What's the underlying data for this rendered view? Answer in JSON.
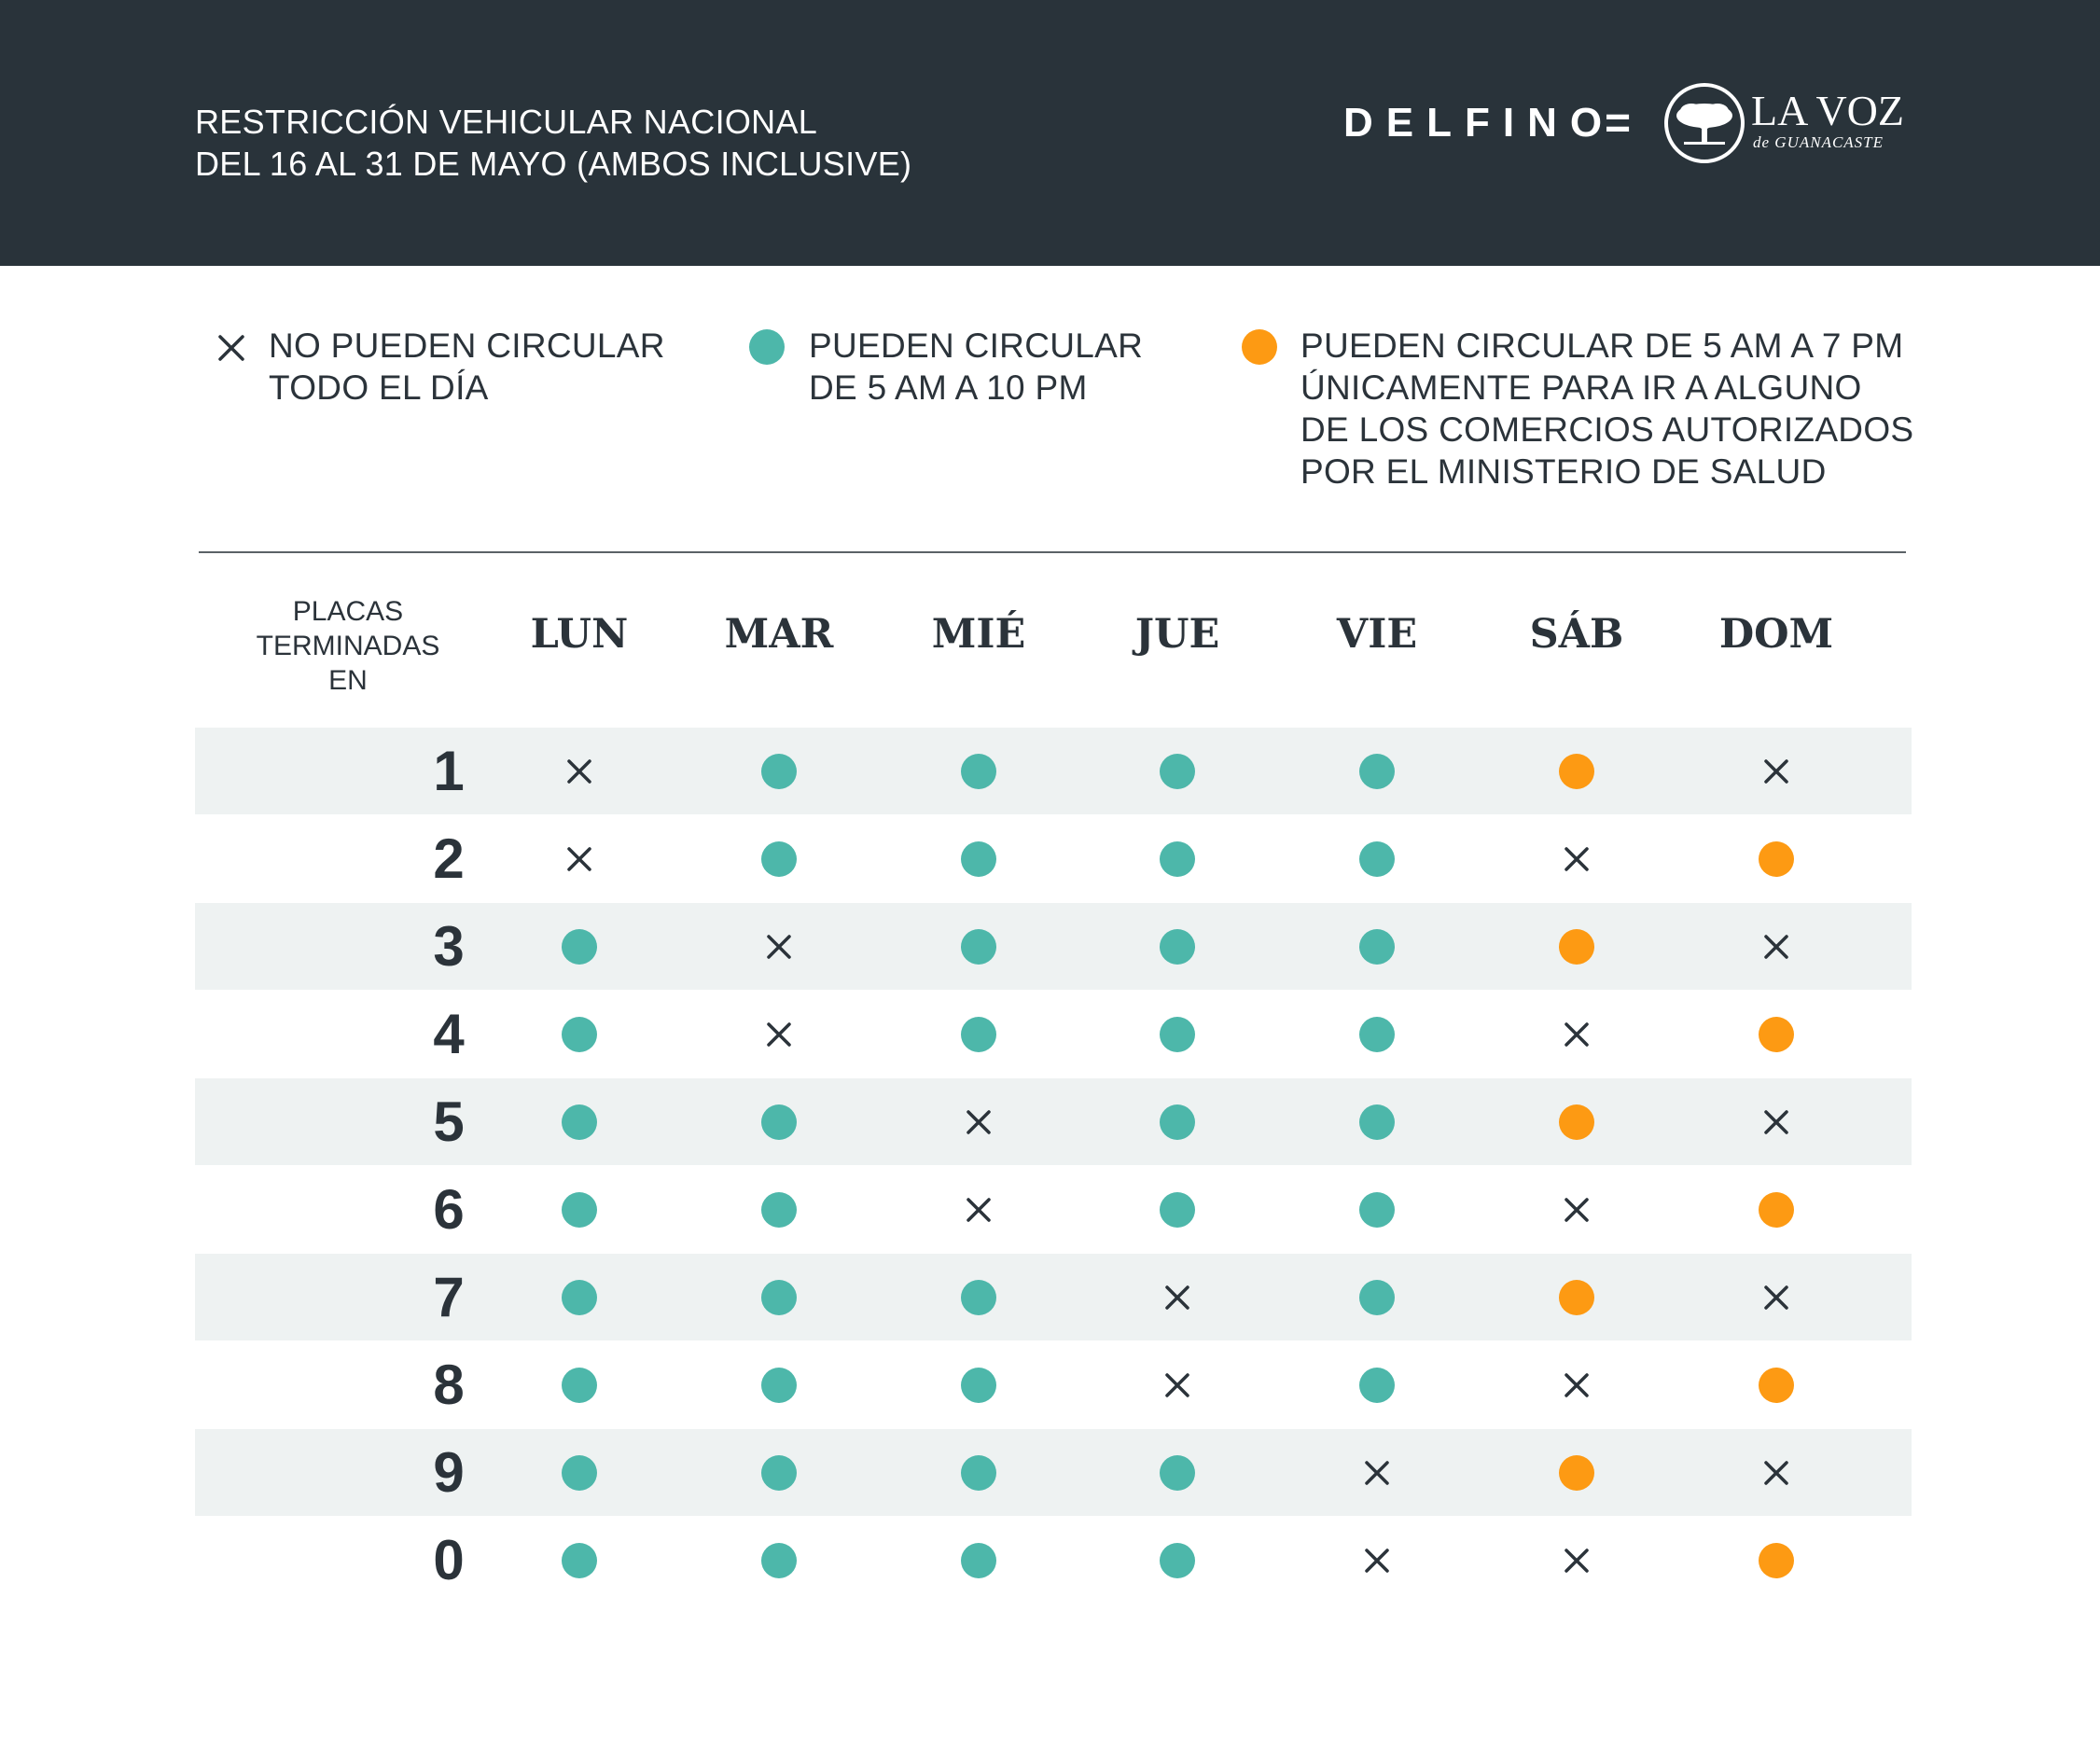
{
  "header": {
    "title_line1": "RESTRICCIÓN VEHICULAR NACIONAL",
    "title_line2": "DEL 16 AL 31 DE MAYO (AMBOS INCLUSIVE)",
    "brand": "DELFINO",
    "equals": "=",
    "logo_main": "LA VOZ",
    "logo_sub": "de GUANACASTE"
  },
  "legend": {
    "no_circulate": {
      "line1": "NO PUEDEN CIRCULAR",
      "line2": "TODO EL DÍA",
      "color": "#2b333a"
    },
    "full_day": {
      "line1": "PUEDEN CIRCULAR",
      "line2": "DE 5 AM A 10 PM",
      "color": "#4db7aa"
    },
    "limited": {
      "line1": "PUEDEN CIRCULAR DE 5 AM A 7 PM",
      "line2": "ÚNICAMENTE PARA IR A ALGUNO",
      "line3": "DE LOS COMERCIOS AUTORIZADOS",
      "line4": "POR EL MINISTERIO DE SALUD",
      "color": "#fd9a13"
    }
  },
  "table": {
    "plates_header": {
      "line1": "PLACAS",
      "line2": "TERMINADAS",
      "line3": "EN"
    },
    "days": [
      "LUN",
      "MAR",
      "MIÉ",
      "JUE",
      "VIE",
      "SÁB",
      "DOM"
    ],
    "rows": [
      {
        "plate": "1",
        "cells": [
          "x",
          "teal",
          "teal",
          "teal",
          "teal",
          "orange",
          "x"
        ]
      },
      {
        "plate": "2",
        "cells": [
          "x",
          "teal",
          "teal",
          "teal",
          "teal",
          "x",
          "orange"
        ]
      },
      {
        "plate": "3",
        "cells": [
          "teal",
          "x",
          "teal",
          "teal",
          "teal",
          "orange",
          "x"
        ]
      },
      {
        "plate": "4",
        "cells": [
          "teal",
          "x",
          "teal",
          "teal",
          "teal",
          "x",
          "orange"
        ]
      },
      {
        "plate": "5",
        "cells": [
          "teal",
          "teal",
          "x",
          "teal",
          "teal",
          "orange",
          "x"
        ]
      },
      {
        "plate": "6",
        "cells": [
          "teal",
          "teal",
          "x",
          "teal",
          "teal",
          "x",
          "orange"
        ]
      },
      {
        "plate": "7",
        "cells": [
          "teal",
          "teal",
          "teal",
          "x",
          "teal",
          "orange",
          "x"
        ]
      },
      {
        "plate": "8",
        "cells": [
          "teal",
          "teal",
          "teal",
          "x",
          "teal",
          "x",
          "orange"
        ]
      },
      {
        "plate": "9",
        "cells": [
          "teal",
          "teal",
          "teal",
          "teal",
          "x",
          "orange",
          "x"
        ]
      },
      {
        "plate": "0",
        "cells": [
          "teal",
          "teal",
          "teal",
          "teal",
          "x",
          "x",
          "orange"
        ]
      }
    ]
  }
}
